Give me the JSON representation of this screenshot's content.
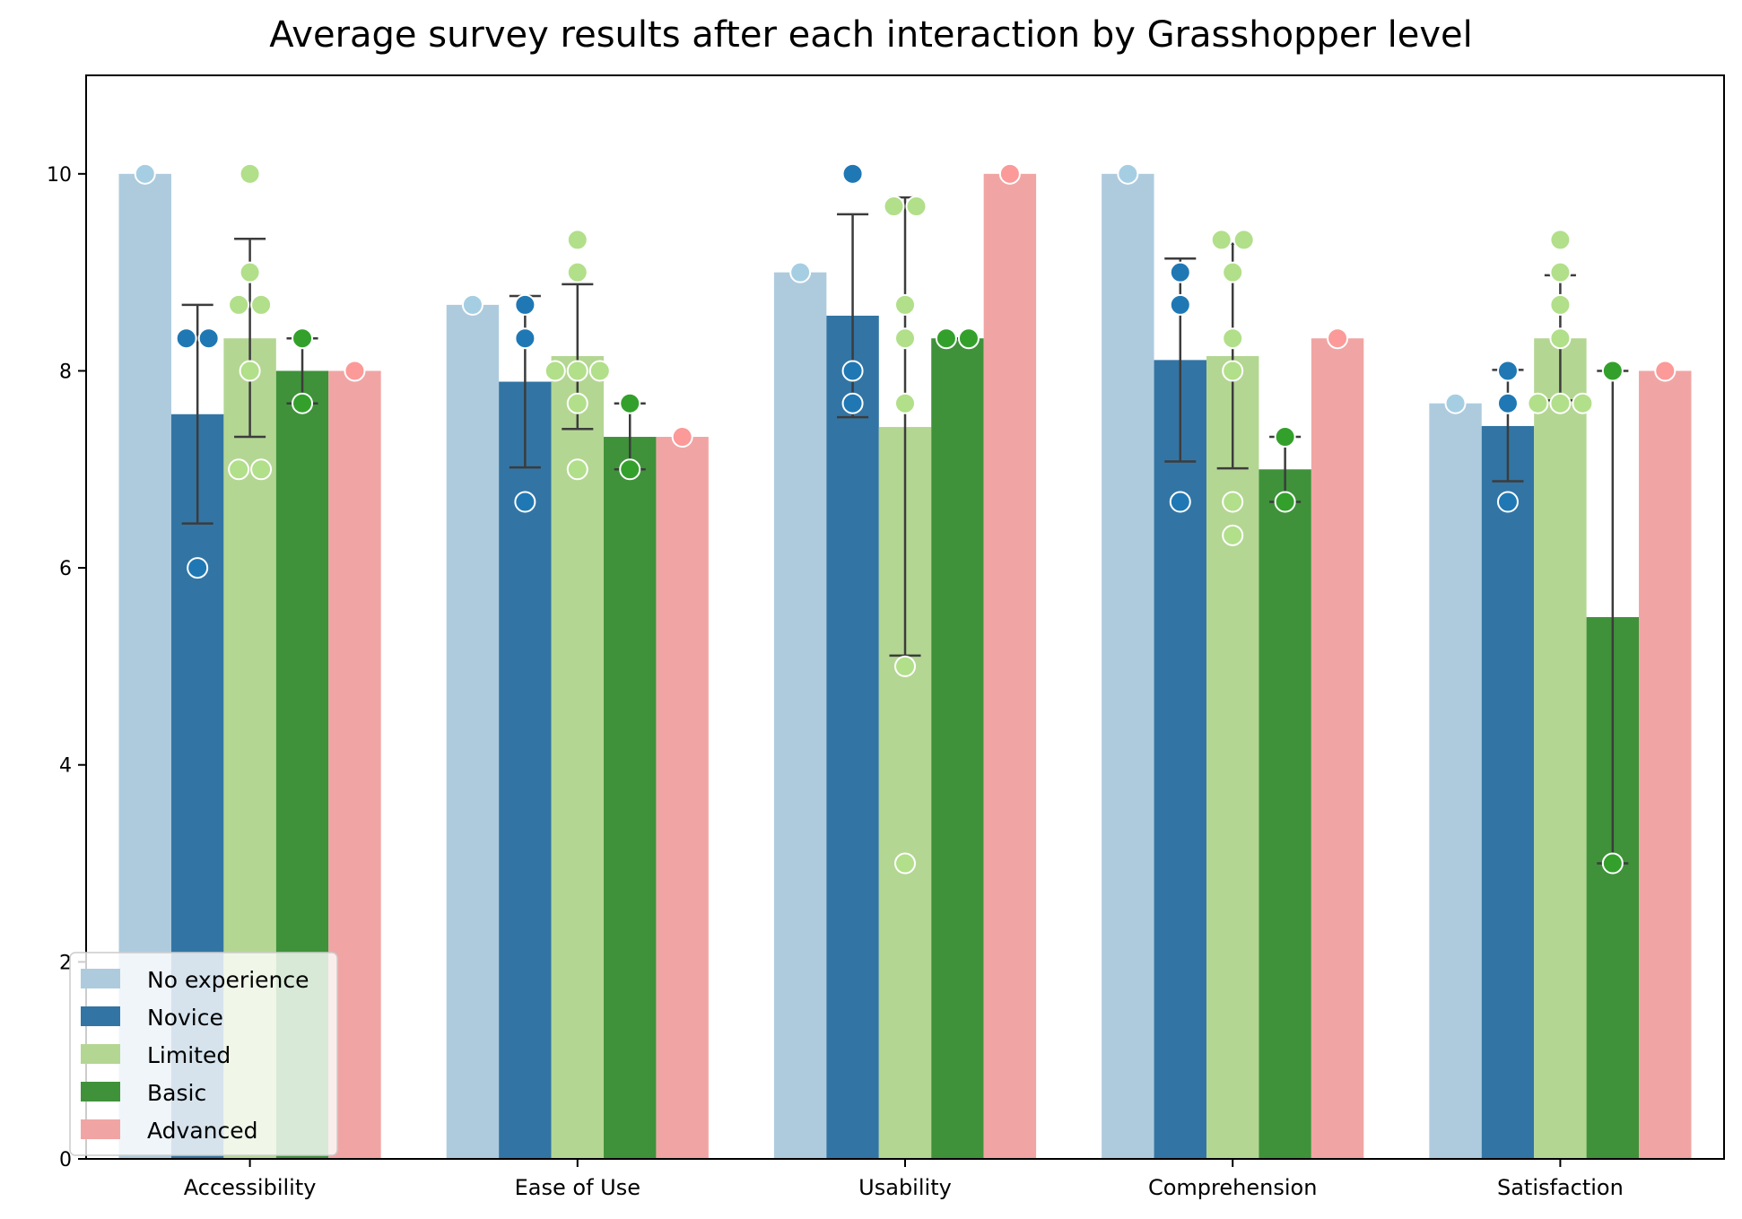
{
  "chart_data": {
    "type": "bar",
    "title": "Average survey results after each interaction by Grasshopper level",
    "xlabel": "",
    "ylabel": "",
    "ylim": [
      0,
      11
    ],
    "yticks": [
      0,
      2,
      4,
      6,
      8,
      10
    ],
    "grid": false,
    "legend_position": "lower-left",
    "categories": [
      "Accessibility",
      "Ease of Use",
      "Usability",
      "Comprehension",
      "Satisfaction"
    ],
    "series": [
      {
        "name": "No experience",
        "color": "#aecbde",
        "point_color": "#a6cee3",
        "values": [
          10.0,
          8.67,
          9.0,
          10.0,
          7.67
        ],
        "error": [
          null,
          null,
          null,
          null,
          null
        ],
        "points": [
          [
            10.0
          ],
          [
            8.67
          ],
          [
            9.0
          ],
          [
            10.0
          ],
          [
            7.67
          ]
        ]
      },
      {
        "name": "Novice",
        "color": "#3275a4",
        "point_color": "#1f78b4",
        "values": [
          7.56,
          7.89,
          8.56,
          8.11,
          7.44
        ],
        "error": [
          [
            6.45,
            8.67
          ],
          [
            7.02,
            8.76
          ],
          [
            7.53,
            9.59
          ],
          [
            7.08,
            9.14
          ],
          [
            6.88,
            8.01
          ]
        ],
        "points": [
          [
            8.33,
            8.33,
            6.0
          ],
          [
            8.67,
            8.33,
            6.67
          ],
          [
            10.0,
            8.0,
            7.67
          ],
          [
            9.0,
            8.67,
            6.67
          ],
          [
            8.0,
            7.67,
            6.67
          ]
        ]
      },
      {
        "name": "Limited",
        "color": "#b4d693",
        "point_color": "#b2df8a",
        "values": [
          8.33,
          8.15,
          7.43,
          8.15,
          8.33
        ],
        "error": [
          [
            7.33,
            9.34
          ],
          [
            7.41,
            8.88
          ],
          [
            5.11,
            9.76
          ],
          [
            7.01,
            9.29
          ],
          [
            7.7,
            8.97
          ]
        ],
        "points": [
          [
            10.0,
            9.0,
            8.67,
            8.67,
            8.0,
            7.0,
            7.0
          ],
          [
            9.33,
            9.0,
            8.0,
            8.0,
            8.0,
            7.67,
            7.0
          ],
          [
            9.67,
            9.67,
            8.67,
            8.33,
            7.67,
            5.0,
            3.0
          ],
          [
            9.33,
            9.33,
            9.0,
            8.33,
            8.0,
            6.67,
            6.33
          ],
          [
            9.33,
            9.0,
            8.67,
            8.33,
            7.67,
            7.67,
            7.67
          ]
        ]
      },
      {
        "name": "Basic",
        "color": "#3f923a",
        "point_color": "#33a02c",
        "values": [
          8.0,
          7.33,
          8.33,
          7.0,
          5.5
        ],
        "error": [
          [
            7.67,
            8.33
          ],
          [
            7.0,
            7.67
          ],
          [
            8.33,
            8.33
          ],
          [
            6.67,
            7.33
          ],
          [
            3.0,
            8.0
          ]
        ],
        "points": [
          [
            8.33,
            7.67
          ],
          [
            7.67,
            7.0
          ],
          [
            8.33,
            8.33
          ],
          [
            7.33,
            6.67
          ],
          [
            8.0,
            3.0
          ]
        ]
      },
      {
        "name": "Advanced",
        "color": "#f0a5a4",
        "point_color": "#fb9a99",
        "values": [
          8.0,
          7.33,
          10.0,
          8.33,
          8.0
        ],
        "error": [
          null,
          null,
          null,
          null,
          null
        ],
        "points": [
          [
            8.0
          ],
          [
            7.33
          ],
          [
            10.0
          ],
          [
            8.33
          ],
          [
            8.0
          ]
        ]
      }
    ]
  }
}
